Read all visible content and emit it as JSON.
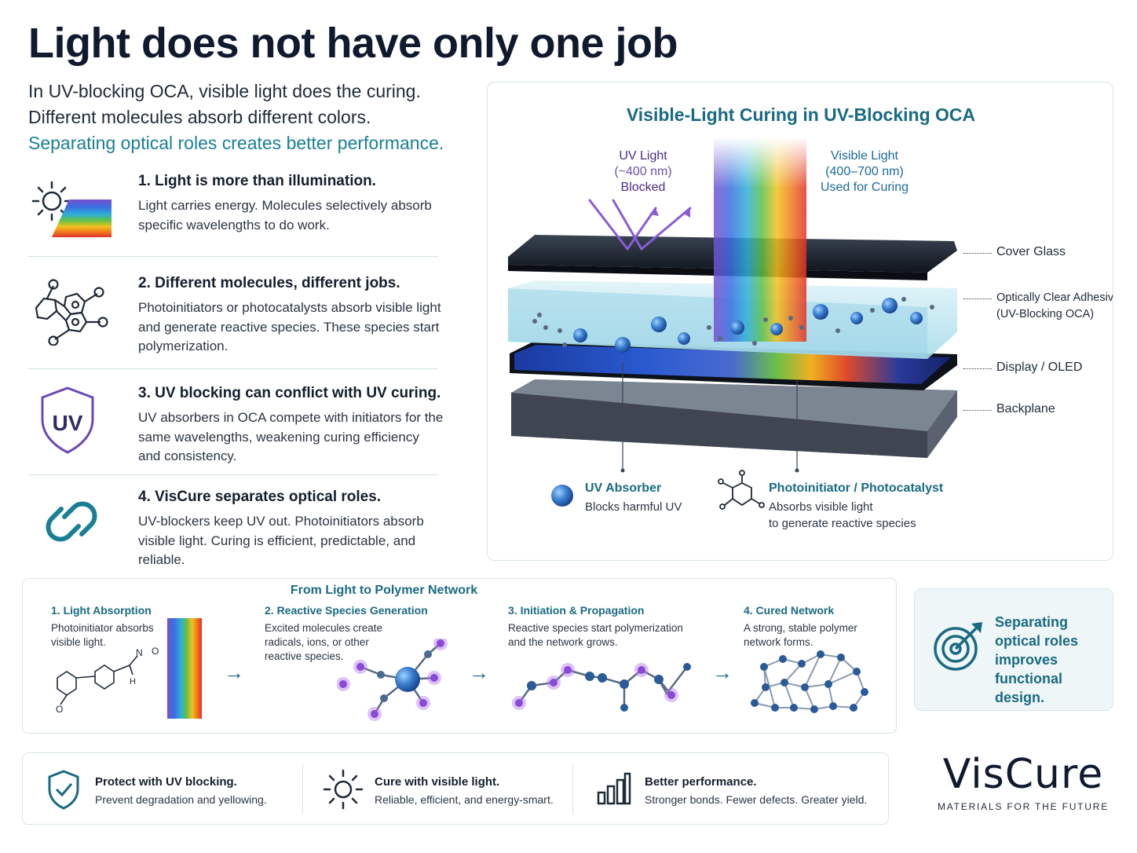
{
  "title": "Light does not have only one job",
  "intro": {
    "line1": "In UV-blocking OCA, visible light does the curing.",
    "line2": "Different molecules absorb different colors.",
    "line3": "Separating optical roles creates better performance."
  },
  "points": [
    {
      "title": "1. Light is more than illumination.",
      "text": "Light carries energy. Molecules selectively absorb specific wavelengths to do work.",
      "icon": "sun-spectrum-icon"
    },
    {
      "title": "2. Different molecules, different jobs.",
      "text": "Photoinitiators or photocatalysts absorb visible light and generate reactive species. These species start polymerization.",
      "icon": "molecule-icon"
    },
    {
      "title": "3. UV blocking can conflict with UV curing.",
      "text": "UV absorbers in OCA compete with initiators for the same wavelengths, weakening curing efficiency and consistency.",
      "icon": "uv-shield-icon",
      "badge": "UV"
    },
    {
      "title": "4. VisCure separates optical roles.",
      "text": "UV-blockers keep UV out. Photoinitiators absorb visible light. Curing is efficient, predictable, and reliable.",
      "icon": "chain-link-icon"
    }
  ],
  "diagram": {
    "title": "Visible-Light Curing in UV-Blocking OCA",
    "uv_label": {
      "name": "UV Light",
      "range": "(~400 nm)",
      "status": "Blocked"
    },
    "visible_label": {
      "name": "Visible Light",
      "range": "(400–700 nm)",
      "status": "Used for Curing"
    },
    "layers": [
      {
        "name": "Cover Glass"
      },
      {
        "name": "Optically Clear Adhesive",
        "sub": "(UV-Blocking OCA)"
      },
      {
        "name": "Display / OLED"
      },
      {
        "name": "Backplane"
      }
    ],
    "legend": [
      {
        "name": "UV Absorber",
        "desc": "Blocks harmful UV"
      },
      {
        "name": "Photoinitiator / Photocatalyst",
        "desc1": "Absorbs visible light",
        "desc2": "to generate reactive species"
      }
    ],
    "colors": {
      "uv": "#8a5cd6",
      "absorber": "#2a6fc0",
      "accent": "#1a6a82"
    }
  },
  "flow": {
    "title": "From Light to Polymer Network",
    "steps": [
      {
        "title": "1. Light Absorption",
        "desc": "Photoinitiator absorbs visible light."
      },
      {
        "title": "2. Reactive Species Generation",
        "desc": "Excited molecules create radicals, ions, or other reactive species."
      },
      {
        "title": "3. Initiation & Propagation",
        "desc": "Reactive species start polymerization and the network grows."
      },
      {
        "title": "4. Cured Network",
        "desc": "A strong, stable polymer network forms."
      }
    ],
    "molecule_atoms": {
      "n": "N",
      "o": "O",
      "h": "H"
    }
  },
  "callout": {
    "text": "Separating optical roles improves functional design.",
    "icon": "target-icon"
  },
  "benefits": [
    {
      "title": "Protect with UV blocking.",
      "desc": "Prevent degradation and yellowing.",
      "icon": "shield-check-icon"
    },
    {
      "title": "Cure with visible light.",
      "desc": "Reliable, efficient, and energy-smart.",
      "icon": "sun-icon"
    },
    {
      "title": "Better performance.",
      "desc": "Stronger bonds. Fewer defects. Greater yield.",
      "icon": "bar-chart-icon"
    }
  ],
  "brand": {
    "name": "VisCure",
    "tagline": "MATERIALS FOR THE FUTURE"
  }
}
